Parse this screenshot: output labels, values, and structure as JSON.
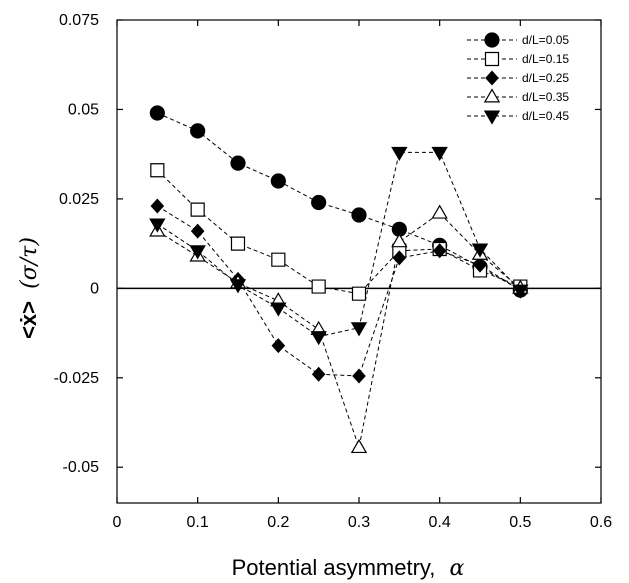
{
  "chart_data": {
    "type": "line",
    "title": "",
    "xlabel": "Potential asymmetry,",
    "xlabel_symbol": "α",
    "ylabel_main": "<ẋ>",
    "ylabel_unit": "(σ/τ)",
    "xlim": [
      0,
      0.6
    ],
    "ylim": [
      -0.06,
      0.075
    ],
    "x_ticks": [
      0,
      0.1,
      0.2,
      0.3,
      0.4,
      0.5,
      0.6
    ],
    "x_tick_labels": [
      "0",
      "0.1",
      "0.2",
      "0.3",
      "0.4",
      "0.5",
      "0.6"
    ],
    "y_ticks": [
      -0.05,
      -0.025,
      0,
      0.025,
      0.05,
      0.075
    ],
    "y_tick_labels": [
      "-0.05",
      "-0.025",
      "0",
      "0.025",
      "0.05",
      "0.075"
    ],
    "zero_line": true,
    "grid": false,
    "legend_position": "top-right",
    "series": [
      {
        "name": "d/L=0.05",
        "marker": "circle",
        "fill": "filled",
        "x": [
          0.05,
          0.1,
          0.15,
          0.2,
          0.25,
          0.3,
          0.35,
          0.4,
          0.45,
          0.5
        ],
        "y": [
          0.049,
          0.044,
          0.035,
          0.03,
          0.024,
          0.0205,
          0.0165,
          0.012,
          0.006,
          -0.0005
        ]
      },
      {
        "name": "d/L=0.15",
        "marker": "square",
        "fill": "open",
        "x": [
          0.05,
          0.1,
          0.15,
          0.2,
          0.25,
          0.3,
          0.35,
          0.4,
          0.45,
          0.5
        ],
        "y": [
          0.033,
          0.022,
          0.0125,
          0.008,
          0.0005,
          -0.0015,
          0.0105,
          0.011,
          0.005,
          0.0005
        ]
      },
      {
        "name": "d/L=0.25",
        "marker": "diamond",
        "fill": "filled",
        "x": [
          0.05,
          0.1,
          0.15,
          0.2,
          0.25,
          0.3,
          0.35,
          0.4,
          0.45,
          0.5
        ],
        "y": [
          0.023,
          0.016,
          0.0025,
          -0.016,
          -0.024,
          -0.0245,
          0.0085,
          0.0105,
          0.0065,
          -0.0005
        ]
      },
      {
        "name": "d/L=0.35",
        "marker": "triangle-up",
        "fill": "open",
        "x": [
          0.05,
          0.1,
          0.15,
          0.2,
          0.25,
          0.3,
          0.35,
          0.4,
          0.45,
          0.5
        ],
        "y": [
          0.016,
          0.009,
          0.0015,
          -0.0035,
          -0.0115,
          -0.0445,
          0.013,
          0.021,
          0.0095,
          0.0
        ]
      },
      {
        "name": "d/L=0.45",
        "marker": "triangle-down",
        "fill": "filled",
        "x": [
          0.05,
          0.1,
          0.15,
          0.2,
          0.25,
          0.3,
          0.35,
          0.4,
          0.45,
          0.5
        ],
        "y": [
          0.018,
          0.0105,
          0.001,
          -0.0055,
          -0.0135,
          -0.011,
          0.038,
          0.038,
          0.011,
          -0.0005
        ]
      }
    ]
  }
}
